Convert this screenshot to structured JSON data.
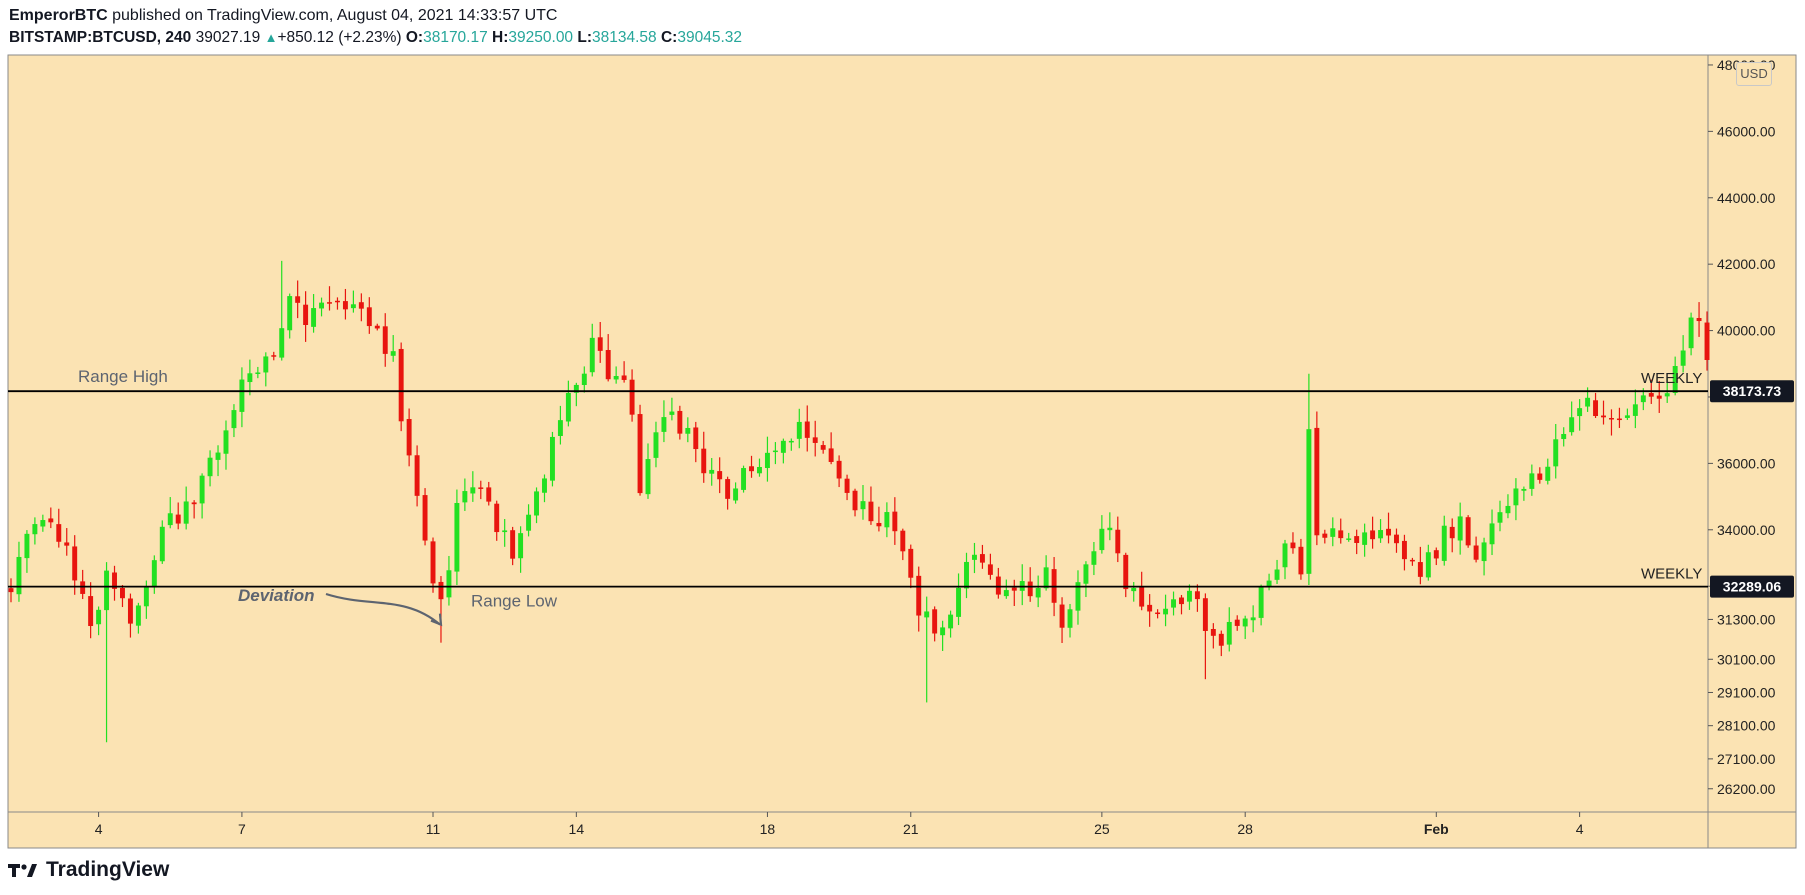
{
  "header": {
    "author": "EmperorBTC",
    "published_text": " published on TradingView.com, August 04, 2021 14:33:57 UTC",
    "symbol": "BITSTAMP:BTCUSD, 240",
    "last": "39027.19",
    "change": "+850.12 (+2.23%)",
    "o_label": "O:",
    "o": "38170.17",
    "h_label": "H:",
    "h": "39250.00",
    "l_label": "L:",
    "l": "38134.58",
    "c_label": "C:",
    "c": "39045.32"
  },
  "currency_badge": "USD",
  "brand": "TradingView",
  "colors": {
    "background": "#fbe3b3",
    "up": "#22e022",
    "down": "#e8150f",
    "line": "#000000",
    "annotation": "#5d6470"
  },
  "chart_data": {
    "type": "candlestick",
    "ylim": [
      25500,
      48300
    ],
    "y_ticks": [
      26200,
      27100,
      28100,
      29100,
      30100,
      31300,
      32300,
      34000,
      36000,
      38000,
      40000,
      42000,
      44000,
      46000,
      48000
    ],
    "y_tick_labels": [
      "26200.00",
      "27100.00",
      "28100.00",
      "29100.00",
      "30100.00",
      "31300.00",
      "32300.00",
      "34000.00",
      "36000.00",
      "38000.00",
      "40000.00",
      "42000.00",
      "44000.00",
      "46000.00",
      "48000.00"
    ],
    "x_ticks": [
      {
        "label": "4",
        "bar": 11
      },
      {
        "label": "7",
        "bar": 29
      },
      {
        "label": "11",
        "bar": 53
      },
      {
        "label": "14",
        "bar": 71
      },
      {
        "label": "18",
        "bar": 95
      },
      {
        "label": "21",
        "bar": 113
      },
      {
        "label": "25",
        "bar": 137
      },
      {
        "label": "28",
        "bar": 155
      },
      {
        "label": "Feb",
        "bar": 179
      },
      {
        "label": "4",
        "bar": 197
      }
    ],
    "horizontal_lines": [
      {
        "price": 38173.73,
        "label": "WEEKLY",
        "price_label": "38173.73",
        "annotation": "Range High"
      },
      {
        "price": 32289.06,
        "label": "WEEKLY",
        "price_label": "32289.06",
        "annotation": "Range Low"
      }
    ],
    "annotations": [
      {
        "text": "Deviation",
        "points_to_bar": 54
      }
    ],
    "anchors": [
      [
        0,
        32300
      ],
      [
        3,
        34500
      ],
      [
        5,
        34200
      ],
      [
        8,
        32800
      ],
      [
        10,
        31200
      ],
      [
        12,
        32600
      ],
      [
        15,
        31500
      ],
      [
        17,
        32300
      ],
      [
        19,
        33800
      ],
      [
        21,
        34500
      ],
      [
        23,
        35100
      ],
      [
        26,
        36600
      ],
      [
        28,
        37700
      ],
      [
        30,
        38700
      ],
      [
        33,
        39300
      ],
      [
        35,
        41300
      ],
      [
        37,
        40300
      ],
      [
        39,
        40700
      ],
      [
        42,
        40800
      ],
      [
        44,
        40600
      ],
      [
        46,
        39800
      ],
      [
        48,
        39300
      ],
      [
        49,
        37500
      ],
      [
        51,
        35000
      ],
      [
        52,
        33500
      ],
      [
        54,
        31700
      ],
      [
        56,
        34500
      ],
      [
        58,
        35500
      ],
      [
        61,
        34000
      ],
      [
        63,
        33300
      ],
      [
        65,
        34500
      ],
      [
        67,
        35800
      ],
      [
        69,
        37200
      ],
      [
        71,
        38500
      ],
      [
        73,
        39500
      ],
      [
        75,
        38700
      ],
      [
        77,
        38400
      ],
      [
        78,
        37500
      ],
      [
        79,
        35300
      ],
      [
        81,
        36600
      ],
      [
        83,
        37600
      ],
      [
        86,
        36300
      ],
      [
        88,
        35600
      ],
      [
        90,
        35000
      ],
      [
        92,
        35600
      ],
      [
        94,
        36200
      ],
      [
        96,
        36300
      ],
      [
        98,
        36800
      ],
      [
        100,
        37100
      ],
      [
        102,
        36600
      ],
      [
        104,
        35400
      ],
      [
        106,
        34800
      ],
      [
        108,
        34300
      ],
      [
        110,
        34600
      ],
      [
        112,
        33100
      ],
      [
        114,
        31500
      ],
      [
        116,
        31100
      ],
      [
        118,
        31700
      ],
      [
        120,
        32900
      ],
      [
        122,
        33100
      ],
      [
        124,
        32200
      ],
      [
        126,
        32400
      ],
      [
        128,
        32300
      ],
      [
        130,
        32600
      ],
      [
        132,
        31400
      ],
      [
        134,
        32500
      ],
      [
        136,
        33600
      ],
      [
        138,
        34100
      ],
      [
        140,
        32500
      ],
      [
        142,
        31700
      ],
      [
        144,
        31500
      ],
      [
        146,
        32100
      ],
      [
        148,
        32100
      ],
      [
        150,
        31300
      ],
      [
        152,
        30800
      ],
      [
        154,
        31300
      ],
      [
        156,
        31500
      ],
      [
        158,
        32400
      ],
      [
        160,
        33700
      ],
      [
        162,
        32800
      ],
      [
        163,
        36700
      ],
      [
        164,
        33600
      ],
      [
        166,
        33700
      ],
      [
        168,
        33800
      ],
      [
        170,
        34000
      ],
      [
        172,
        33800
      ],
      [
        174,
        33500
      ],
      [
        176,
        32800
      ],
      [
        178,
        33000
      ],
      [
        180,
        33900
      ],
      [
        182,
        34100
      ],
      [
        184,
        33400
      ],
      [
        186,
        33900
      ],
      [
        188,
        34600
      ],
      [
        190,
        35300
      ],
      [
        192,
        35800
      ],
      [
        194,
        36500
      ],
      [
        196,
        37100
      ],
      [
        198,
        37800
      ],
      [
        200,
        37200
      ],
      [
        202,
        37500
      ],
      [
        204,
        37700
      ],
      [
        206,
        38000
      ],
      [
        208,
        38300
      ],
      [
        210,
        39700
      ],
      [
        212,
        40500
      ],
      [
        213,
        39200
      ]
    ],
    "bar_count": 214
  }
}
